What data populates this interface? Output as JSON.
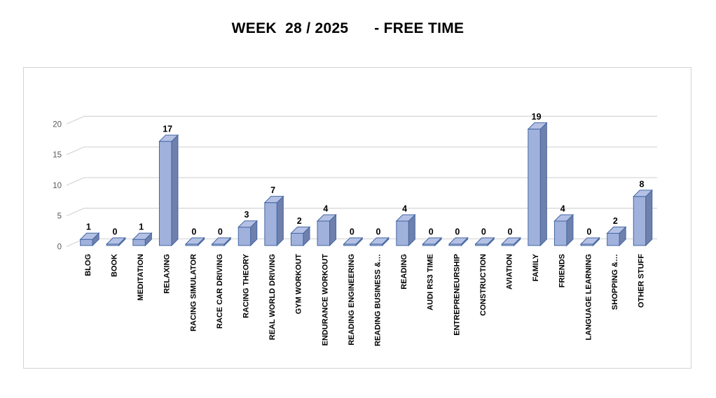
{
  "title": "WEEK  28 / 2025      - FREE TIME",
  "chart_data": {
    "type": "bar",
    "style": "3d-column",
    "title": "WEEK  28 / 2025      - FREE TIME",
    "categories": [
      "BLOG",
      "BOOK",
      "MEDITATION",
      "RELAXING",
      "RACING SIMULATOR",
      "RACE CAR DRIVING",
      "RACING THEORY",
      "REAL WORLD DRIVING",
      "GYM WORKOUT",
      "ENDURANCE WORKOUT",
      "READING ENGINEERING",
      "READING BUSINESS &…",
      "READING",
      "AUDI RS3 TIME",
      "ENTREPRENEURSHIP",
      "CONSTRUCTION",
      "AVIATION",
      "FAMILY",
      "FRIENDS",
      "LANGUAGE LEARNING",
      "SHOPPING &…",
      "OTHER STUFF"
    ],
    "values": [
      1,
      0,
      1,
      17,
      0,
      0,
      3,
      7,
      2,
      4,
      0,
      0,
      4,
      0,
      0,
      0,
      0,
      19,
      4,
      0,
      2,
      8
    ],
    "y_ticks": [
      0,
      5,
      10,
      15,
      20
    ],
    "ylim": [
      0,
      20
    ],
    "xlabel": "",
    "ylabel": "",
    "grid": true,
    "data_labels": true,
    "legend": "none",
    "colors": {
      "bar_front": "#A0B1DC",
      "bar_side": "#6F80AD",
      "bar_top": "#B4C1E5",
      "bar_edge": "#4467A1",
      "gridline": "#D9D9D9",
      "tick_label": "#595959",
      "value_label": "#000000",
      "title_color": "#000000",
      "frame_border": "#D2D2D2"
    }
  }
}
